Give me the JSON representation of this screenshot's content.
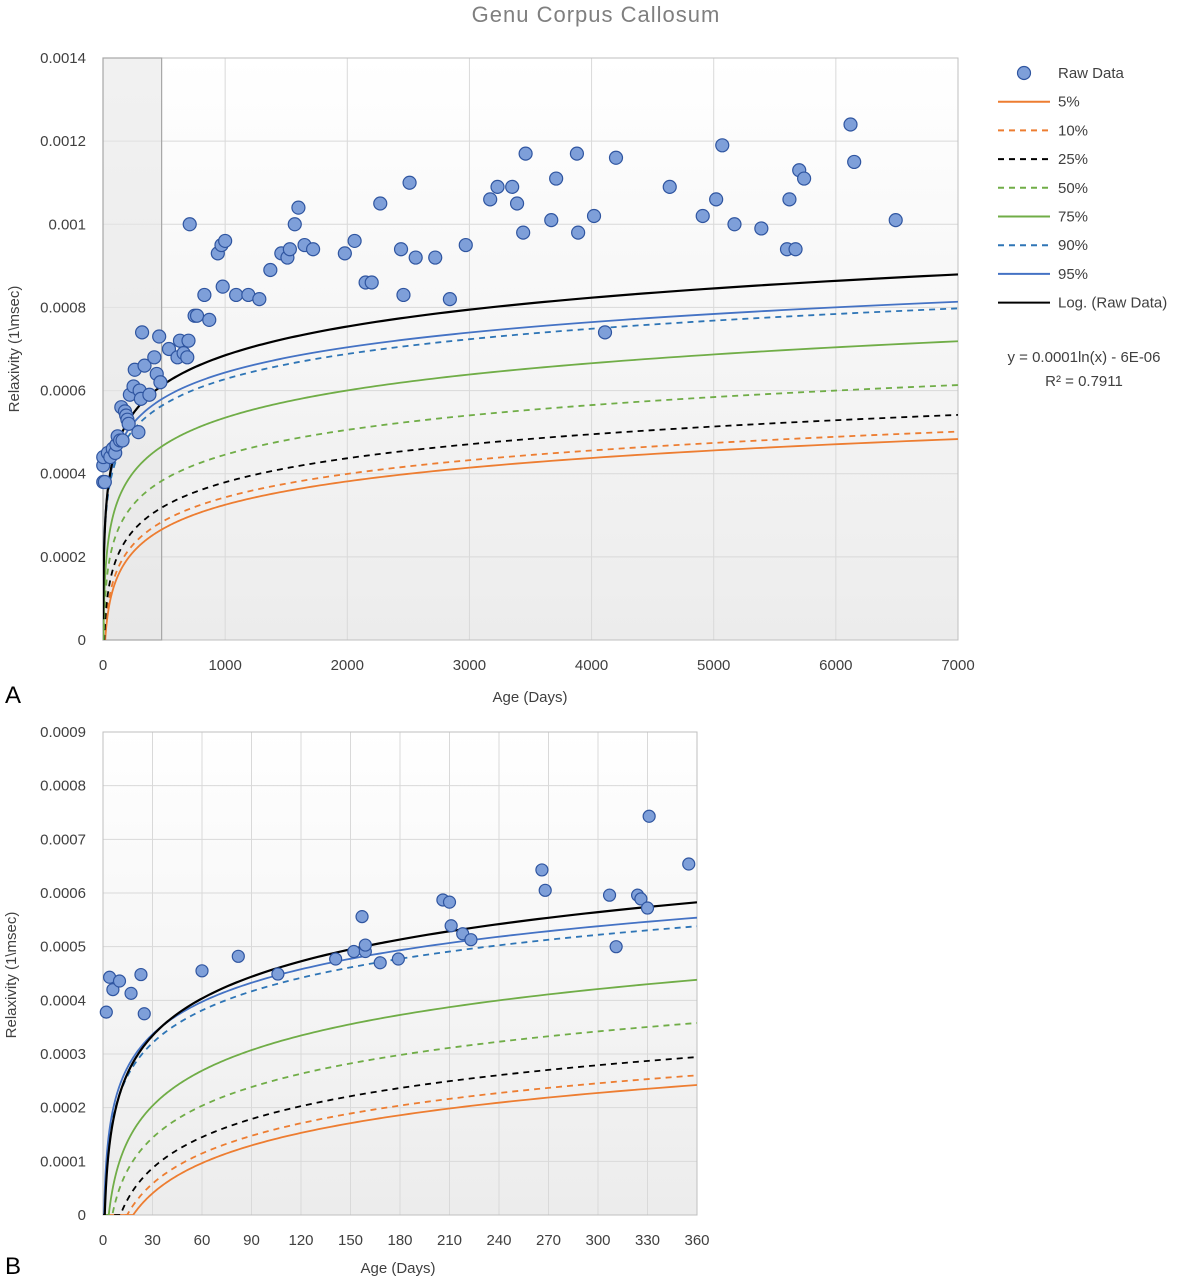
{
  "figure": {
    "title": "Genu  Corpus  Callosum",
    "equation": "y = 0.0001ln(x) - 6E-06",
    "r_squared": "R² = 0.7911",
    "legend": [
      {
        "label": "Raw Data",
        "kind": "marker",
        "color": "#4472c4",
        "dash": ""
      },
      {
        "label": "5%",
        "kind": "line",
        "color": "#ed7d31",
        "dash": ""
      },
      {
        "label": "10%",
        "kind": "line",
        "color": "#ed7d31",
        "dash": "6,5"
      },
      {
        "label": "25%",
        "kind": "line",
        "color": "#000000",
        "dash": "6,5"
      },
      {
        "label": "50%",
        "kind": "line",
        "color": "#70ad47",
        "dash": "6,5"
      },
      {
        "label": "75%",
        "kind": "line",
        "color": "#70ad47",
        "dash": ""
      },
      {
        "label": "90%",
        "kind": "line",
        "color": "#2e75b6",
        "dash": "6,5"
      },
      {
        "label": "95%",
        "kind": "line",
        "color": "#4472c4",
        "dash": ""
      },
      {
        "label": "Log. (Raw Data)",
        "kind": "line",
        "color": "#000000",
        "dash": ""
      }
    ]
  },
  "chart_data": [
    {
      "panel": "A",
      "type": "scatter",
      "title": "Genu  Corpus  Callosum",
      "xlabel": "Age (Days)",
      "ylabel": "Relaxivity (1\\msec)",
      "xlim": [
        0,
        7000
      ],
      "ylim": [
        0,
        0.0014
      ],
      "xticks": [
        0,
        1000,
        2000,
        3000,
        4000,
        5000,
        6000,
        7000
      ],
      "xtick_labels": [
        "0",
        "1000",
        "2000",
        "3000",
        "4000",
        "5000",
        "6000",
        "7000"
      ],
      "yticks": [
        0,
        0.0002,
        0.0004,
        0.0006,
        0.0008,
        0.001,
        0.0012,
        0.0014
      ],
      "ytick_labels": [
        "0",
        "0.0002",
        "0.0004",
        "0.0006",
        "0.0008",
        "0.001",
        "0.0012",
        "0.0014"
      ],
      "grid": true,
      "legend_position": "right",
      "highlight_x_range": [
        0,
        480
      ],
      "points": [
        [
          2,
          0.00038
        ],
        [
          2,
          0.00042
        ],
        [
          2,
          0.00044
        ],
        [
          15,
          0.00038
        ],
        [
          40,
          0.00045
        ],
        [
          60,
          0.00044
        ],
        [
          80,
          0.00046
        ],
        [
          100,
          0.00045
        ],
        [
          110,
          0.00047
        ],
        [
          120,
          0.00049
        ],
        [
          140,
          0.00048
        ],
        [
          150,
          0.00056
        ],
        [
          160,
          0.00048
        ],
        [
          180,
          0.00055
        ],
        [
          190,
          0.00054
        ],
        [
          200,
          0.00053
        ],
        [
          210,
          0.00052
        ],
        [
          220,
          0.00059
        ],
        [
          250,
          0.00061
        ],
        [
          260,
          0.00065
        ],
        [
          290,
          0.0005
        ],
        [
          300,
          0.0006
        ],
        [
          310,
          0.00058
        ],
        [
          320,
          0.00074
        ],
        [
          340,
          0.00066
        ],
        [
          380,
          0.00059
        ],
        [
          420,
          0.00068
        ],
        [
          440,
          0.00064
        ],
        [
          460,
          0.00073
        ],
        [
          470,
          0.00062
        ],
        [
          540,
          0.0007
        ],
        [
          610,
          0.00068
        ],
        [
          630,
          0.00072
        ],
        [
          660,
          0.00069
        ],
        [
          690,
          0.00068
        ],
        [
          700,
          0.00072
        ],
        [
          710,
          0.001
        ],
        [
          750,
          0.00078
        ],
        [
          770,
          0.00078
        ],
        [
          830,
          0.00083
        ],
        [
          870,
          0.00077
        ],
        [
          940,
          0.00093
        ],
        [
          970,
          0.00095
        ],
        [
          980,
          0.00085
        ],
        [
          1000,
          0.00096
        ],
        [
          1090,
          0.00083
        ],
        [
          1190,
          0.00083
        ],
        [
          1280,
          0.00082
        ],
        [
          1370,
          0.00089
        ],
        [
          1460,
          0.00093
        ],
        [
          1510,
          0.00092
        ],
        [
          1530,
          0.00094
        ],
        [
          1570,
          0.001
        ],
        [
          1600,
          0.00104
        ],
        [
          1650,
          0.00095
        ],
        [
          1720,
          0.00094
        ],
        [
          1980,
          0.00093
        ],
        [
          2060,
          0.00096
        ],
        [
          2150,
          0.00086
        ],
        [
          2200,
          0.00086
        ],
        [
          2270,
          0.00105
        ],
        [
          2440,
          0.00094
        ],
        [
          2460,
          0.00083
        ],
        [
          2510,
          0.0011
        ],
        [
          2560,
          0.00092
        ],
        [
          2720,
          0.00092
        ],
        [
          2840,
          0.00082
        ],
        [
          2970,
          0.00095
        ],
        [
          3170,
          0.00106
        ],
        [
          3230,
          0.00109
        ],
        [
          3350,
          0.00109
        ],
        [
          3390,
          0.00105
        ],
        [
          3440,
          0.00098
        ],
        [
          3460,
          0.00117
        ],
        [
          3670,
          0.00101
        ],
        [
          3710,
          0.00111
        ],
        [
          3880,
          0.00117
        ],
        [
          3890,
          0.00098
        ],
        [
          4020,
          0.00102
        ],
        [
          4110,
          0.00074
        ],
        [
          4200,
          0.00116
        ],
        [
          4640,
          0.00109
        ],
        [
          4910,
          0.00102
        ],
        [
          5020,
          0.00106
        ],
        [
          5070,
          0.00119
        ],
        [
          5170,
          0.001
        ],
        [
          5390,
          0.00099
        ],
        [
          5600,
          0.00094
        ],
        [
          5620,
          0.00106
        ],
        [
          5670,
          0.00094
        ],
        [
          5700,
          0.00113
        ],
        [
          5740,
          0.00111
        ],
        [
          6120,
          0.00124
        ],
        [
          6150,
          0.00115
        ],
        [
          6490,
          0.00101
        ]
      ],
      "curves": [
        {
          "name": "5%",
          "a": 8.125e-05,
          "b": -0.000236
        },
        {
          "name": "10%",
          "a": 8.125e-05,
          "b": -0.000218
        },
        {
          "name": "25%",
          "a": 8.33e-05,
          "b": -0.000196
        },
        {
          "name": "50%",
          "a": 8.61e-05,
          "b": -0.000149
        },
        {
          "name": "75%",
          "a": 9.45e-05,
          "b": -0.000118
        },
        {
          "name": "90%",
          "a": 8.75e-05,
          "b": 2.3e-05
        },
        {
          "name": "95%",
          "a": 8.75e-05,
          "b": 3.9e-05
        },
        {
          "name": "Log. (Raw Data)",
          "a": 0.0001,
          "b": -6e-06
        }
      ]
    },
    {
      "panel": "B",
      "type": "scatter",
      "xlabel": "Age (Days)",
      "ylabel": "Relaxivity (1\\msec)",
      "xlim": [
        0,
        360
      ],
      "ylim": [
        0,
        0.0009
      ],
      "xticks": [
        0,
        30,
        60,
        90,
        120,
        150,
        180,
        210,
        240,
        270,
        300,
        330,
        360
      ],
      "xtick_labels": [
        "0",
        "30",
        "60",
        "90",
        "120",
        "150",
        "180",
        "210",
        "240",
        "270",
        "300",
        "330",
        "360"
      ],
      "yticks": [
        0,
        0.0001,
        0.0002,
        0.0003,
        0.0004,
        0.0005,
        0.0006,
        0.0007,
        0.0008,
        0.0009
      ],
      "ytick_labels": [
        "0",
        "0.0001",
        "0.0002",
        "0.0003",
        "0.0004",
        "0.0005",
        "0.0006",
        "0.0007",
        "0.0008",
        "0.0009"
      ],
      "grid": true,
      "points": [
        [
          2,
          0.000378
        ],
        [
          4,
          0.000443
        ],
        [
          6,
          0.00042
        ],
        [
          10,
          0.000436
        ],
        [
          17,
          0.000413
        ],
        [
          23,
          0.000448
        ],
        [
          25,
          0.000375
        ],
        [
          60,
          0.000455
        ],
        [
          82,
          0.000482
        ],
        [
          106,
          0.000449
        ],
        [
          141,
          0.000477
        ],
        [
          152,
          0.000491
        ],
        [
          157,
          0.000556
        ],
        [
          159,
          0.000491
        ],
        [
          159,
          0.000503
        ],
        [
          168,
          0.00047
        ],
        [
          179,
          0.000477
        ],
        [
          206,
          0.000587
        ],
        [
          210,
          0.000583
        ],
        [
          211,
          0.000539
        ],
        [
          218,
          0.000524
        ],
        [
          223,
          0.000513
        ],
        [
          266,
          0.000643
        ],
        [
          268,
          0.000605
        ],
        [
          307,
          0.000596
        ],
        [
          311,
          0.0005
        ],
        [
          324,
          0.000596
        ],
        [
          326,
          0.000589
        ],
        [
          330,
          0.000572
        ],
        [
          331,
          0.000743
        ],
        [
          355,
          0.000654
        ]
      ],
      "curves": [
        {
          "name": "5%",
          "a": 8.125e-05,
          "b": -0.000236
        },
        {
          "name": "10%",
          "a": 8.125e-05,
          "b": -0.000218
        },
        {
          "name": "25%",
          "a": 8.33e-05,
          "b": -0.000196
        },
        {
          "name": "50%",
          "a": 8.61e-05,
          "b": -0.000149
        },
        {
          "name": "75%",
          "a": 9.45e-05,
          "b": -0.000118
        },
        {
          "name": "90%",
          "a": 8.75e-05,
          "b": 2.3e-05
        },
        {
          "name": "95%",
          "a": 8.75e-05,
          "b": 3.9e-05
        },
        {
          "name": "Log. (Raw Data)",
          "a": 0.0001,
          "b": -6e-06
        }
      ]
    }
  ]
}
